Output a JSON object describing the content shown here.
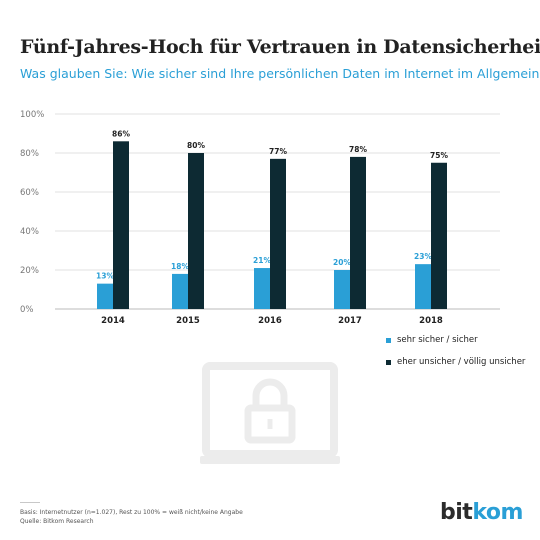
{
  "title": "Fünf-Jahres-Hoch für Vertrauen in Datensicherheit",
  "subtitle": "Was glauben Sie: Wie sicher sind Ihre persönlichen Daten im Internet im Allgemeinen?",
  "chart_data": {
    "type": "bar",
    "categories": [
      "2014",
      "2015",
      "2016",
      "2017",
      "2018"
    ],
    "series": [
      {
        "name": "sehr sicher / sicher",
        "values": [
          13,
          18,
          21,
          20,
          23
        ],
        "labels": [
          "13%",
          "18%",
          "21%",
          "20%",
          "23%"
        ],
        "color": "#2a9fd6"
      },
      {
        "name": "eher unsicher / völlig unsicher",
        "values": [
          86,
          80,
          77,
          78,
          75
        ],
        "labels": [
          "86%",
          "80%",
          "77%",
          "78%",
          "75%"
        ],
        "color": "#0d2a33"
      }
    ],
    "yticks": [
      "0%",
      "20%",
      "40%",
      "60%",
      "80%",
      "100%"
    ],
    "ylim": [
      0,
      100
    ],
    "grid": true,
    "legend_position": "bottom-right"
  },
  "footnote": {
    "line1": "Basis: Internetnutzer (n=1.027), Rest zu 100% = weiß nicht/keine Angabe",
    "line2": "Quelle: Bitkom Research"
  },
  "logo": {
    "part1": "bit",
    "part2": "kom"
  },
  "icons": {
    "background": "laptop-lock-icon"
  }
}
